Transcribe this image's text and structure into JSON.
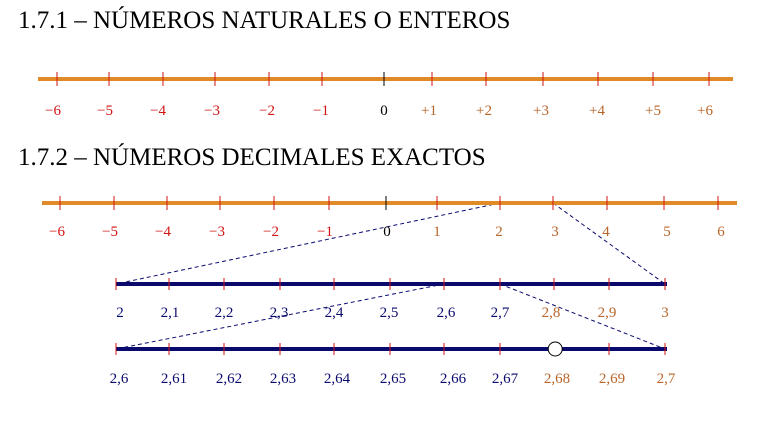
{
  "headings": {
    "naturales": "1.7.1 – NÚMEROS NATURALES O ENTEROS",
    "decimales": "1.7.2 – NÚMEROS DECIMALES EXACTOS"
  },
  "colors": {
    "axis_orange": "#e08a28",
    "axis_navy": "#0a0a6e",
    "negative_red": "#d21414",
    "positive_brown": "#b8652a",
    "zero_black": "#000000",
    "navy_label": "#0a0a6e",
    "tick_red": "#d21414"
  },
  "lines": [
    {
      "id": "enteros",
      "labels": [
        "−6",
        "−5",
        "−4",
        "−3",
        "−2",
        "−1",
        "0",
        "+1",
        "+2",
        "+3",
        "+4",
        "+5",
        "+6"
      ],
      "label_colors": [
        "negative_red",
        "negative_red",
        "negative_red",
        "negative_red",
        "negative_red",
        "negative_red",
        "zero_black",
        "positive_brown",
        "positive_brown",
        "positive_brown",
        "positive_brown",
        "positive_brown",
        "positive_brown"
      ]
    },
    {
      "id": "decimales-unidades",
      "labels": [
        "−6",
        "−5",
        "−4",
        "−3",
        "−2",
        "−1",
        "0",
        "1",
        "2",
        "3",
        "4",
        "5",
        "6"
      ],
      "label_colors": [
        "negative_red",
        "negative_red",
        "negative_red",
        "negative_red",
        "negative_red",
        "negative_red",
        "zero_black",
        "positive_brown",
        "positive_brown",
        "positive_brown",
        "positive_brown",
        "positive_brown",
        "positive_brown"
      ]
    },
    {
      "id": "decimales-decimas",
      "labels": [
        "2",
        "2,1",
        "2,2",
        "2,3",
        "2,4",
        "2,5",
        "2,6",
        "2,7",
        "2,8",
        "2,9",
        "3"
      ],
      "label_colors": [
        "navy_label",
        "navy_label",
        "navy_label",
        "navy_label",
        "navy_label",
        "navy_label",
        "navy_label",
        "navy_label",
        "positive_brown",
        "positive_brown",
        "positive_brown"
      ]
    },
    {
      "id": "decimales-centesimas",
      "labels": [
        "2,6",
        "2,61",
        "2,62",
        "2,63",
        "2,64",
        "2,65",
        "2,66",
        "2,67",
        "2,68",
        "2,69",
        "2,7"
      ],
      "label_colors": [
        "navy_label",
        "navy_label",
        "navy_label",
        "navy_label",
        "navy_label",
        "navy_label",
        "navy_label",
        "navy_label",
        "positive_brown",
        "positive_brown",
        "positive_brown"
      ]
    }
  ],
  "marked_point": {
    "value": 2.68
  }
}
